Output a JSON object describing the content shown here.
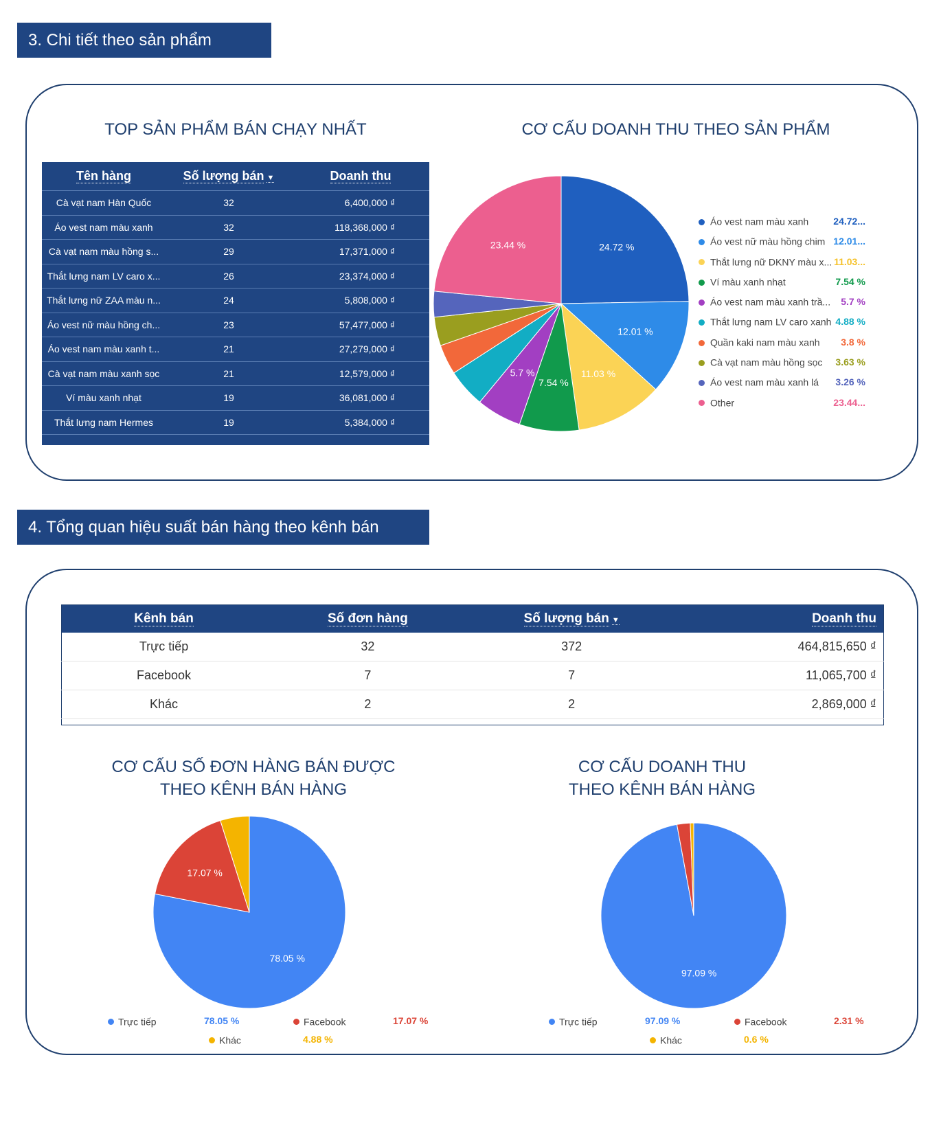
{
  "section3": {
    "title": "3. Chi tiết theo sản phẩm"
  },
  "section4": {
    "title": "4. Tổng quan hiệu suất bán hàng theo kênh bán"
  },
  "top_products": {
    "title": "TOP SẢN PHẨM BÁN CHẠY NHẤT",
    "headers": [
      "Tên hàng",
      "Số lượng bán",
      "Doanh thu"
    ],
    "sort_icon": "caret-down-icon",
    "rows": [
      [
        "Cà vạt nam Hàn Quốc",
        "32",
        "6,400,000 ₫"
      ],
      [
        "Áo vest nam màu xanh",
        "32",
        "118,368,000 ₫"
      ],
      [
        "Cà vạt nam màu hồng s...",
        "29",
        "17,371,000 ₫"
      ],
      [
        "Thắt lưng nam LV caro x...",
        "26",
        "23,374,000 ₫"
      ],
      [
        "Thắt lưng nữ ZAA màu n...",
        "24",
        "5,808,000 ₫"
      ],
      [
        "Áo vest nữ màu hồng ch...",
        "23",
        "57,477,000 ₫"
      ],
      [
        "Áo vest nam màu xanh t...",
        "21",
        "27,279,000 ₫"
      ],
      [
        "Cà vạt nam màu xanh sọc",
        "21",
        "12,579,000 ₫"
      ],
      [
        "Ví màu xanh nhạt",
        "19",
        "36,081,000 ₫"
      ],
      [
        "Thắt lưng nam Hermes",
        "19",
        "5,384,000 ₫"
      ]
    ]
  },
  "channels_table": {
    "headers": [
      "Kênh bán",
      "Số đơn hàng",
      "Số lượng bán",
      "Doanh thu"
    ],
    "sort_icon": "caret-down-icon",
    "rows": [
      [
        "Trực tiếp",
        "32",
        "372",
        "464,815,650 ₫"
      ],
      [
        "Facebook",
        "7",
        "7",
        "11,065,700 ₫"
      ],
      [
        "Khác",
        "2",
        "2",
        "2,869,000 ₫"
      ]
    ]
  },
  "chart_data": [
    {
      "type": "pie",
      "title": "CƠ CẤU DOANH THU THEO SẢN PHẨM",
      "categories": [
        "Áo vest nam màu xanh",
        "Áo vest nữ màu hồng chim",
        "Thắt lưng nữ DKNY màu x...",
        "Ví màu xanh nhạt",
        "Áo vest nam màu xanh trầ...",
        "Thắt lưng nam LV caro xanh",
        "Quần kaki nam màu xanh",
        "Cà vạt nam màu hồng sọc",
        "Áo vest nam màu xanh lá",
        "Other"
      ],
      "values": [
        24.72,
        12.01,
        11.03,
        7.54,
        5.7,
        4.88,
        3.8,
        3.63,
        3.26,
        23.44
      ],
      "legend_values": [
        "24.72...",
        "12.01...",
        "11.03...",
        "7.54 %",
        "5.7 %",
        "4.88 %",
        "3.8 %",
        "3.63 %",
        "3.26 %",
        "23.44..."
      ],
      "slice_labels": [
        "24.72 %",
        "12.01 %",
        "11.03 %",
        "7.54 %",
        "5.7 %",
        "",
        "",
        "",
        "",
        "23.44 %"
      ],
      "colors": [
        "#1f5fbf",
        "#2e8be8",
        "#fbd355",
        "#119a4c",
        "#a23fc2",
        "#12adc4",
        "#f2683a",
        "#9a9e1f",
        "#5565bc",
        "#ec5f8f"
      ],
      "legend": "right"
    },
    {
      "type": "pie",
      "title_lines": [
        "CƠ CẤU SỐ ĐƠN HÀNG BÁN ĐƯỢC",
        "THEO KÊNH BÁN HÀNG"
      ],
      "categories": [
        "Trực tiếp",
        "Facebook",
        "Khác"
      ],
      "values": [
        78.05,
        17.07,
        4.88
      ],
      "legend_values": [
        "78.05 %",
        "17.07 %",
        "4.88 %"
      ],
      "slice_labels": [
        "78.05 %",
        "17.07 %",
        ""
      ],
      "colors": [
        "#4285f4",
        "#db4437",
        "#f4b400"
      ],
      "legend": "bottom"
    },
    {
      "type": "pie",
      "title_lines": [
        "CƠ CẤU DOANH THU",
        "THEO KÊNH BÁN HÀNG"
      ],
      "categories": [
        "Trực tiếp",
        "Facebook",
        "Khác"
      ],
      "values": [
        97.09,
        2.31,
        0.6
      ],
      "legend_values": [
        "97.09 %",
        "2.31 %",
        "0.6 %"
      ],
      "slice_labels": [
        "97.09 %",
        "",
        ""
      ],
      "colors": [
        "#4285f4",
        "#db4437",
        "#f4b400"
      ],
      "legend": "bottom"
    }
  ]
}
